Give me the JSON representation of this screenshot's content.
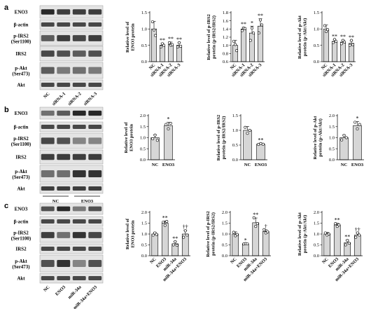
{
  "panels": [
    {
      "letter": "a",
      "blot_rows": [
        {
          "label": "ENO3",
          "style": "thin",
          "intensity": [
            0.95,
            0.85,
            0.85,
            0.85
          ]
        },
        {
          "label": "β-actin",
          "style": "thin",
          "intensity": [
            0.8,
            0.8,
            0.8,
            0.8
          ]
        },
        {
          "label": "p-IRS2\n(Ser1100)",
          "style": "tall",
          "intensity": [
            0.7,
            0.85,
            0.8,
            0.85
          ]
        },
        {
          "label": "IRS2",
          "style": "tall",
          "intensity": [
            0.8,
            0.75,
            0.7,
            0.75
          ]
        },
        {
          "label": "p-Akt\n(Ser473)",
          "style": "tall",
          "intensity": [
            0.7,
            0.55,
            0.6,
            0.55
          ]
        },
        {
          "label": "Akt",
          "style": "thin",
          "intensity": [
            0.8,
            0.8,
            0.8,
            0.8
          ]
        }
      ],
      "lane_labels": [
        "NC",
        "siRNA-1",
        "siRNA-2",
        "siRNA-3"
      ],
      "lane_rotated": true,
      "group_underlines": []
    },
    {
      "letter": "b",
      "blot_rows": [
        {
          "label": "ENO3",
          "style": "thin",
          "intensity": [
            0.6,
            0.7,
            0.95,
            0.95
          ]
        },
        {
          "label": "β-actin",
          "style": "thin",
          "intensity": [
            0.8,
            0.8,
            0.8,
            0.8
          ]
        },
        {
          "label": "p-IRS2\n(Ser1100)",
          "style": "tall",
          "intensity": [
            0.8,
            0.75,
            0.5,
            0.5
          ]
        },
        {
          "label": "IRS2",
          "style": "tall",
          "intensity": [
            0.85,
            0.85,
            0.85,
            0.85
          ]
        },
        {
          "label": "p-Akt\n(Ser473)",
          "style": "tall",
          "intensity": [
            0.6,
            0.6,
            0.9,
            0.9
          ]
        },
        {
          "label": "Akt",
          "style": "thin",
          "intensity": [
            0.85,
            0.85,
            0.85,
            0.85
          ]
        }
      ],
      "lane_labels": [],
      "lane_rotated": false,
      "group_underlines": [
        "NC",
        "ENO3"
      ]
    },
    {
      "letter": "c",
      "blot_rows": [
        {
          "label": "ENO3",
          "style": "thin",
          "intensity": [
            0.75,
            0.95,
            0.55,
            0.75
          ]
        },
        {
          "label": "β-actin",
          "style": "thin",
          "intensity": [
            0.8,
            0.8,
            0.8,
            0.8
          ]
        },
        {
          "label": "p-IRS2\n(Ser1100)",
          "style": "tall",
          "intensity": [
            0.85,
            0.6,
            0.9,
            0.8
          ]
        },
        {
          "label": "IRS2",
          "style": "thin",
          "intensity": [
            0.8,
            0.8,
            0.8,
            0.8
          ]
        },
        {
          "label": "p-Akt\n(Ser473)",
          "style": "tall",
          "intensity": [
            0.75,
            0.9,
            0.5,
            0.75
          ]
        },
        {
          "label": "Akt",
          "style": "thin",
          "intensity": [
            0.8,
            0.8,
            0.8,
            0.8
          ]
        }
      ],
      "lane_labels": [
        "NC",
        "ENO3",
        "miR-34a",
        "miR-34a+ENO3"
      ],
      "lane_rotated": true,
      "group_underlines": []
    }
  ],
  "chart_data": [
    {
      "panel": "a",
      "type": "bar",
      "ylabel": "Relative level of\nENO3 protein",
      "categories": [
        "NC",
        "siRNA-1",
        "siRNA-2",
        "siRNA-3"
      ],
      "values": [
        1.0,
        0.5,
        0.53,
        0.5
      ],
      "errors": [
        0.23,
        0.06,
        0.07,
        0.08
      ],
      "points": [
        [
          1.22,
          0.97,
          0.8
        ],
        [
          0.45,
          0.55,
          0.5
        ],
        [
          0.58,
          0.5,
          0.52
        ],
        [
          0.45,
          0.58,
          0.47
        ]
      ],
      "sig": [
        "",
        "**",
        "**",
        "**"
      ],
      "ylim": [
        0,
        1.5
      ],
      "yticks": [
        0.0,
        0.5,
        1.0,
        1.5
      ],
      "rotated": true
    },
    {
      "panel": "a",
      "type": "bar",
      "ylabel": "Relative level of p-IRS2\nprotein (p-IRS2/IRS2)",
      "categories": [
        "NC",
        "siRNA-1",
        "siRNA-2",
        "siRNA-3"
      ],
      "values": [
        1.0,
        1.4,
        1.3,
        1.47
      ],
      "errors": [
        0.12,
        0.04,
        0.17,
        0.18
      ],
      "points": [
        [
          1.1,
          1.02,
          0.87
        ],
        [
          1.36,
          1.42,
          1.41
        ],
        [
          1.12,
          1.42,
          1.3
        ],
        [
          1.3,
          1.62,
          1.5
        ]
      ],
      "sig": [
        "",
        "**",
        "*",
        "**"
      ],
      "ylim": [
        0.6,
        1.8
      ],
      "yticks": [
        0.6,
        0.8,
        1.0,
        1.2,
        1.4,
        1.6,
        1.8
      ],
      "rotated": true
    },
    {
      "panel": "a",
      "type": "bar",
      "ylabel": "Relative level of p-Akt\nprotein (p-Akt/Akt)",
      "categories": [
        "NC",
        "siRNA-1",
        "siRNA-2",
        "siRNA-3"
      ],
      "values": [
        1.0,
        0.62,
        0.6,
        0.56
      ],
      "errors": [
        0.12,
        0.06,
        0.06,
        0.08
      ],
      "points": [
        [
          1.1,
          0.92,
          0.98
        ],
        [
          0.58,
          0.68,
          0.62
        ],
        [
          0.55,
          0.65,
          0.6
        ],
        [
          0.5,
          0.65,
          0.52
        ]
      ],
      "sig": [
        "",
        "**",
        "**",
        "**"
      ],
      "ylim": [
        0,
        1.5
      ],
      "yticks": [
        0.0,
        0.5,
        1.0,
        1.5
      ],
      "rotated": true
    },
    {
      "panel": "b",
      "type": "bar",
      "ylabel": "Relative level of\nENO3 protein",
      "categories": [
        "NC",
        "ENO3"
      ],
      "values": [
        1.0,
        1.55
      ],
      "errors": [
        0.12,
        0.15
      ],
      "points": [
        [
          0.95,
          1.12,
          0.88
        ],
        [
          1.6,
          1.4,
          1.65
        ]
      ],
      "sig": [
        "",
        "*"
      ],
      "ylim": [
        0,
        2.0
      ],
      "yticks": [
        0.0,
        0.5,
        1.0,
        1.5,
        2.0
      ],
      "rotated": false
    },
    {
      "panel": "b",
      "type": "bar",
      "ylabel": "Relative level of p-IRS2\nprotein (p-IRS2/IRS2)",
      "categories": [
        "NC",
        "ENO3"
      ],
      "values": [
        1.0,
        0.53
      ],
      "errors": [
        0.13,
        0.03
      ],
      "points": [
        [
          1.1,
          0.9,
          1.0
        ],
        [
          0.52,
          0.55,
          0.53
        ]
      ],
      "sig": [
        "",
        "**"
      ],
      "ylim": [
        0,
        1.5
      ],
      "yticks": [
        0.0,
        0.5,
        1.0,
        1.5
      ],
      "rotated": false
    },
    {
      "panel": "b",
      "type": "bar",
      "ylabel": "Relative level of p-Akt\nprotein (p-Akt/Akt)",
      "categories": [
        "NC",
        "ENO3"
      ],
      "values": [
        1.0,
        1.55
      ],
      "errors": [
        0.12,
        0.18
      ],
      "points": [
        [
          0.9,
          1.1,
          1.0
        ],
        [
          1.7,
          1.4,
          1.6
        ]
      ],
      "sig": [
        "",
        "*"
      ],
      "ylim": [
        0,
        2.0
      ],
      "yticks": [
        0.0,
        0.5,
        1.0,
        1.5,
        2.0
      ],
      "rotated": false
    },
    {
      "panel": "c",
      "type": "bar",
      "ylabel": "Relative level of\nENO3 protein",
      "categories": [
        "NC",
        "ENO3",
        "miR-34a",
        "miR-34a+ENO3"
      ],
      "values": [
        1.0,
        1.5,
        0.55,
        1.0
      ],
      "errors": [
        0.08,
        0.1,
        0.1,
        0.18
      ],
      "points": [
        [
          0.95,
          1.05,
          0.98
        ],
        [
          1.55,
          1.4,
          1.58
        ],
        [
          0.5,
          0.65,
          0.48
        ],
        [
          0.85,
          1.15,
          0.95
        ]
      ],
      "sig": [
        "",
        "**",
        "**",
        "††"
      ],
      "ylim": [
        0,
        2.0
      ],
      "yticks": [
        0.0,
        0.5,
        1.0,
        1.5,
        2.0
      ],
      "rotated": true
    },
    {
      "panel": "c",
      "type": "bar",
      "ylabel": "Relative level of p-IRS2\nprotein (p-IRS2/IRS2)",
      "categories": [
        "NC",
        "ENO3",
        "miR-34a",
        "miR-34a+ENO3"
      ],
      "values": [
        1.0,
        0.55,
        1.52,
        1.12
      ],
      "errors": [
        0.1,
        0.02,
        0.22,
        0.08
      ],
      "points": [
        [
          1.08,
          0.92,
          0.98
        ],
        [
          0.54,
          0.56,
          0.55
        ],
        [
          1.75,
          1.35,
          1.48
        ],
        [
          1.2,
          1.05,
          1.1
        ]
      ],
      "sig": [
        "",
        "*",
        "**",
        "†"
      ],
      "ylim": [
        0,
        2.0
      ],
      "yticks": [
        0.0,
        0.5,
        1.0,
        1.5,
        2.0
      ],
      "rotated": true
    },
    {
      "panel": "c",
      "type": "bar",
      "ylabel": "Relative level of p-Akt\nprotein (p-Akt/Akt)",
      "categories": [
        "NC",
        "ENO3",
        "miR-34a",
        "miR-34a+ENO3"
      ],
      "values": [
        1.0,
        1.42,
        0.6,
        0.95
      ],
      "errors": [
        0.08,
        0.08,
        0.12,
        0.1
      ],
      "points": [
        [
          1.05,
          0.95,
          1.0
        ],
        [
          1.48,
          1.35,
          1.42
        ],
        [
          0.5,
          0.7,
          0.58
        ],
        [
          0.85,
          1.05,
          0.95
        ]
      ],
      "sig": [
        "",
        "**",
        "**",
        "††"
      ],
      "ylim": [
        0,
        2.0
      ],
      "yticks": [
        0.0,
        0.5,
        1.0,
        1.5,
        2.0
      ],
      "rotated": true
    }
  ]
}
